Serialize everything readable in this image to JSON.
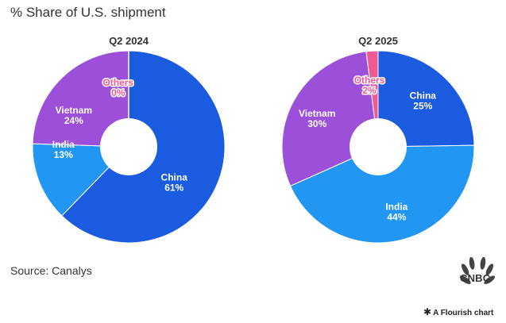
{
  "title": "% Share of U.S. shipment",
  "source": "Source: Canalys",
  "credit": {
    "icon": "asterisk-icon",
    "text": "A Flourish chart"
  },
  "logo": {
    "text": "CNBC",
    "icon": "peacock-icon"
  },
  "chart_data": [
    {
      "type": "pie",
      "donut": true,
      "title": "Q2 2024",
      "slices": [
        {
          "label": "China",
          "value": 61,
          "value_text": "61%",
          "color": "#1a5be0"
        },
        {
          "label": "India",
          "value": 13,
          "value_text": "13%",
          "color": "#2196f3"
        },
        {
          "label": "Vietnam",
          "value": 24,
          "value_text": "24%",
          "color": "#9c4fd8"
        },
        {
          "label": "Others",
          "value": 0,
          "value_text": "0%",
          "color": "#f05a92"
        }
      ]
    },
    {
      "type": "pie",
      "donut": true,
      "title": "Q2 2025",
      "slices": [
        {
          "label": "China",
          "value": 25,
          "value_text": "25%",
          "color": "#1a5be0"
        },
        {
          "label": "India",
          "value": 44,
          "value_text": "44%",
          "color": "#2196f3"
        },
        {
          "label": "Vietnam",
          "value": 30,
          "value_text": "30%",
          "color": "#9c4fd8"
        },
        {
          "label": "Others",
          "value": 2,
          "value_text": "2%",
          "color": "#f05a92"
        }
      ]
    }
  ]
}
